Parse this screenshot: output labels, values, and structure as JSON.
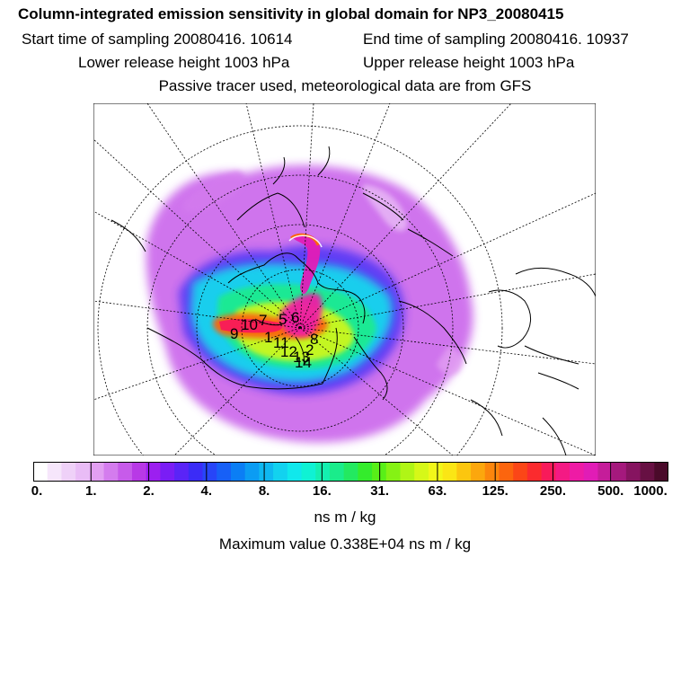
{
  "header": {
    "title": "Column-integrated emission sensitivity in global domain for NP3_20080415",
    "start_time": "Start time of sampling 20080416. 10614",
    "end_time": "End time of sampling 20080416. 10937",
    "lower_height": "Lower release height 1003 hPa",
    "upper_height": "Upper release height 1003 hPa",
    "tracer_info": "Passive tracer used, meteorological data are from GFS"
  },
  "colorbar": {
    "tick_labels": [
      "0.",
      "1.",
      "2.",
      "4.",
      "8.",
      "16.",
      "31.",
      "63.",
      "125.",
      "250.",
      "500.",
      "1000."
    ],
    "colors": [
      "#ffffff",
      "#f6e6fb",
      "#efd1f8",
      "#e9bcf6",
      "#e29ff2",
      "#d47cee",
      "#c75bea",
      "#b839e6",
      "#9c1ff0",
      "#7a1df5",
      "#5a24f7",
      "#3b2cf7",
      "#2745f8",
      "#1760f7",
      "#0b7ef5",
      "#0b9cf3",
      "#0fb8f1",
      "#12d2ef",
      "#10e8ec",
      "#0ff2d4",
      "#14efb0",
      "#1aec8b",
      "#23e960",
      "#34ec2c",
      "#58ef18",
      "#85f214",
      "#b0f516",
      "#d6f818",
      "#f2f719",
      "#fbe615",
      "#fcc60f",
      "#fca70d",
      "#fc860c",
      "#fc650e",
      "#fb4617",
      "#fb2b2e",
      "#f81a5a",
      "#f41a84",
      "#ee1ba5",
      "#e11cb6",
      "#c51d9a",
      "#a5197d",
      "#861460",
      "#671043",
      "#4a0a2a"
    ],
    "units": "ns m / kg",
    "max_value": "Maximum value  0.338E+04 ns m / kg"
  },
  "map": {
    "projection": "north-polar-stereographic",
    "overlay_numbers": [
      "9",
      "10",
      "7",
      "5",
      "6",
      "1",
      "11",
      "12",
      "13",
      "14",
      "2",
      "8"
    ]
  }
}
